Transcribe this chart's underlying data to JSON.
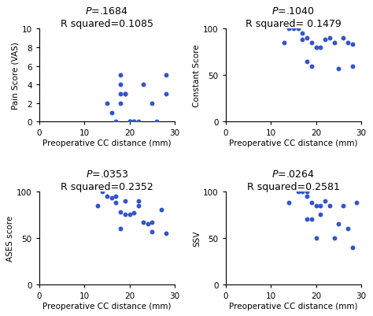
{
  "subplots": [
    {
      "p_val": ".1684",
      "r_sq": "R squared=0.1085",
      "xlabel": "Preoperative CC distance (mm)",
      "ylabel": "Pain Score (VAS)",
      "xlim": [
        0,
        30
      ],
      "ylim": [
        0,
        10
      ],
      "xticks": [
        0,
        10,
        20,
        30
      ],
      "yticks": [
        0,
        2,
        4,
        6,
        8,
        10
      ],
      "x": [
        15,
        16,
        17,
        18,
        18,
        18,
        18,
        19,
        19,
        20,
        20,
        20,
        21,
        21,
        22,
        23,
        25,
        26,
        28,
        28
      ],
      "y": [
        2,
        1,
        0,
        5,
        4,
        3,
        2,
        3,
        3,
        0,
        0,
        0,
        0,
        0,
        0,
        4,
        2,
        0,
        5,
        3
      ]
    },
    {
      "p_val": ".1040",
      "r_sq": "R squared= 0.1479",
      "xlabel": "Preoperative CC distance (mm)",
      "ylabel": "Constant Score",
      "xlim": [
        0,
        30
      ],
      "ylim": [
        0,
        100
      ],
      "xticks": [
        0,
        10,
        20,
        30
      ],
      "yticks": [
        0,
        50,
        100
      ],
      "x": [
        13,
        14,
        15,
        16,
        17,
        17,
        18,
        18,
        19,
        19,
        20,
        21,
        22,
        23,
        24,
        25,
        26,
        27,
        28,
        28
      ],
      "y": [
        85,
        100,
        100,
        100,
        95,
        88,
        90,
        65,
        85,
        60,
        80,
        80,
        88,
        90,
        85,
        57,
        90,
        85,
        60,
        83
      ]
    },
    {
      "p_val": ".0353",
      "r_sq": "R squared=0.2352",
      "xlabel": "Preoperative CC distance (mm)",
      "ylabel": "ASES score",
      "xlim": [
        0,
        30
      ],
      "ylim": [
        0,
        100
      ],
      "xticks": [
        0,
        10,
        20,
        30
      ],
      "yticks": [
        0,
        50,
        100
      ],
      "x": [
        13,
        14,
        15,
        16,
        17,
        17,
        18,
        18,
        19,
        19,
        20,
        21,
        22,
        22,
        23,
        24,
        25,
        25,
        27,
        28
      ],
      "y": [
        85,
        100,
        95,
        93,
        95,
        88,
        60,
        78,
        90,
        75,
        75,
        77,
        90,
        85,
        67,
        65,
        67,
        57,
        80,
        55
      ]
    },
    {
      "p_val": ".0264",
      "r_sq": "R squared=0.2581",
      "xlabel": "Preoperative CC distance (mm)",
      "ylabel": "SSV",
      "xlim": [
        0,
        30
      ],
      "ylim": [
        0,
        100
      ],
      "xticks": [
        0,
        10,
        20,
        30
      ],
      "yticks": [
        0,
        50,
        100
      ],
      "x": [
        14,
        16,
        17,
        18,
        18,
        18,
        19,
        19,
        20,
        20,
        21,
        21,
        22,
        23,
        24,
        25,
        26,
        27,
        28,
        29
      ],
      "y": [
        88,
        100,
        100,
        100,
        95,
        70,
        88,
        70,
        85,
        50,
        75,
        85,
        90,
        85,
        50,
        65,
        85,
        60,
        40,
        88
      ]
    }
  ],
  "dot_color": "#3355cc",
  "title_fontsize": 9,
  "label_fontsize": 7.5,
  "tick_fontsize": 7.5,
  "marker_size": 18
}
